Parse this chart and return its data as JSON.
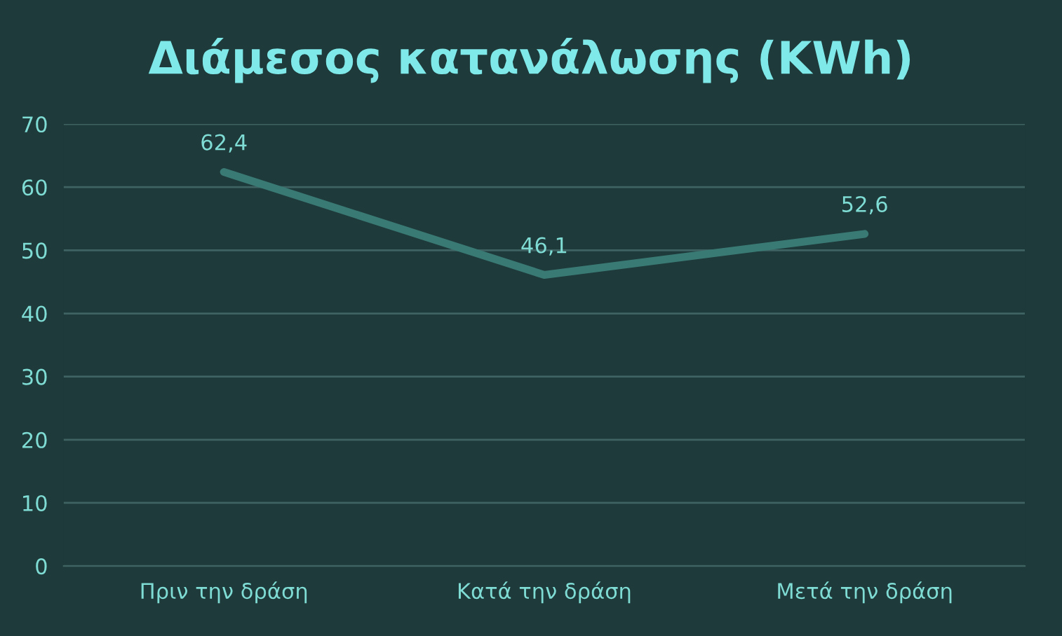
{
  "chart_data": {
    "type": "line",
    "title": "Διάμεσος κατανάλωσης (KWh)",
    "categories": [
      "Πριν την δράση",
      "Κατά την δράση",
      "Μετά την δράση"
    ],
    "series": [
      {
        "color": "#3a7a75",
        "values": [
          62.4,
          46.1,
          52.6
        ],
        "value_labels": [
          "62,4",
          "46,1",
          "52,6"
        ]
      }
    ],
    "ylim": [
      0,
      70
    ],
    "yticks": [
      0,
      10,
      20,
      30,
      40,
      50,
      60,
      70
    ],
    "grid": "y",
    "legend": false,
    "marker": "none",
    "line_style": "solid"
  }
}
